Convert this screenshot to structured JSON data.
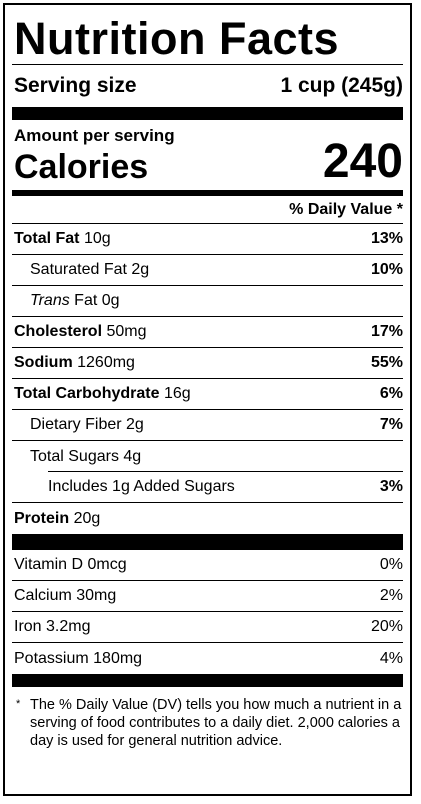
{
  "title": "Nutrition Facts",
  "serving": {
    "label": "Serving size",
    "value": "1 cup (245g)"
  },
  "amount_per_serving": "Amount per serving",
  "calories": {
    "label": "Calories",
    "value": "240"
  },
  "dv_header": "% Daily Value *",
  "nutrients": {
    "total_fat": {
      "name": "Total Fat",
      "amount": "10g",
      "dv": "13%"
    },
    "saturated_fat": {
      "name": "Saturated Fat 2g",
      "dv": "10%"
    },
    "trans_fat": {
      "name_italic": "Trans",
      "name": "Fat 0g"
    },
    "cholesterol": {
      "name": "Cholesterol",
      "amount": "50mg",
      "dv": "17%"
    },
    "sodium": {
      "name": "Sodium",
      "amount": "1260mg",
      "dv": "55%"
    },
    "total_carb": {
      "name": "Total Carbohydrate",
      "amount": "16g",
      "dv": "6%"
    },
    "dietary_fiber": {
      "name": "Dietary Fiber 2g",
      "dv": "7%"
    },
    "total_sugars": {
      "name": "Total Sugars 4g"
    },
    "added_sugars": {
      "name": "Includes 1g Added Sugars",
      "dv": "3%"
    },
    "protein": {
      "name": "Protein",
      "amount": "20g"
    }
  },
  "vitamins": {
    "vitamin_d": {
      "name": "Vitamin D 0mcg",
      "dv": "0%"
    },
    "calcium": {
      "name": "Calcium 30mg",
      "dv": "2%"
    },
    "iron": {
      "name": "Iron 3.2mg",
      "dv": "20%"
    },
    "potassium": {
      "name": "Potassium 180mg",
      "dv": "4%"
    }
  },
  "footnote": {
    "star": "*",
    "text": "The % Daily Value (DV) tells you how much a nutrient in a serving of food contributes to a daily diet. 2,000 calories a day is used for general nutrition advice."
  }
}
